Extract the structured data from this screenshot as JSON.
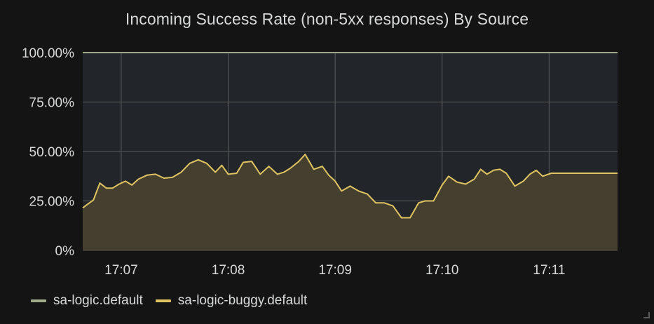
{
  "panel": {
    "title": "Incoming Success Rate (non-5xx responses) By Source"
  },
  "colors": {
    "background": "#141414",
    "plot_background": "#22262a",
    "grid": "#5a5c5c",
    "series_default": "#9faa88",
    "series_buggy": "#e0c461",
    "buggy_fill": "#443f2e"
  },
  "chart_data": {
    "type": "area",
    "title": "Incoming Success Rate (non-5xx responses) By Source",
    "xlabel": "",
    "ylabel": "",
    "y_ticks": [
      "0%",
      "25.00%",
      "50.00%",
      "75.00%",
      "100.00%"
    ],
    "y_tick_values": [
      0,
      25,
      50,
      75,
      100
    ],
    "ylim": [
      0,
      100
    ],
    "x_ticks": [
      "17:07",
      "17:08",
      "17:09",
      "17:10",
      "17:11"
    ],
    "x_tick_minutes": [
      7,
      8,
      9,
      10,
      11
    ],
    "xlim_minutes": [
      6.64,
      11.64
    ],
    "grid": true,
    "legend_placement": "bottom-left",
    "series": [
      {
        "name": "sa-logic.default",
        "color": "#9faa88",
        "x": [
          6.64,
          11.64
        ],
        "values": [
          100.0,
          100.0
        ]
      },
      {
        "name": "sa-logic-buggy.default",
        "color": "#e0c461",
        "x": [
          6.64,
          6.74,
          6.8,
          6.86,
          6.92,
          6.98,
          7.04,
          7.1,
          7.16,
          7.24,
          7.32,
          7.4,
          7.48,
          7.56,
          7.64,
          7.72,
          7.8,
          7.88,
          7.94,
          8.0,
          8.08,
          8.14,
          8.22,
          8.3,
          8.38,
          8.46,
          8.52,
          8.58,
          8.66,
          8.72,
          8.8,
          8.88,
          8.94,
          9.0,
          9.06,
          9.14,
          9.22,
          9.3,
          9.38,
          9.46,
          9.54,
          9.62,
          9.7,
          9.78,
          9.84,
          9.92,
          10.0,
          10.06,
          10.14,
          10.22,
          10.3,
          10.36,
          10.42,
          10.48,
          10.54,
          10.6,
          10.68,
          10.76,
          10.82,
          10.88,
          10.94,
          11.02,
          11.08,
          11.14,
          11.22,
          11.3,
          11.36,
          11.44,
          11.5,
          11.56,
          11.64
        ],
        "values": [
          21.5,
          25.5,
          34.0,
          31.5,
          31.5,
          33.5,
          35.0,
          33.0,
          36.0,
          38.0,
          38.5,
          36.5,
          37.0,
          39.5,
          44.0,
          45.8,
          44.0,
          39.5,
          43.0,
          38.5,
          39.0,
          44.5,
          45.0,
          38.5,
          42.5,
          38.5,
          39.5,
          41.5,
          45.0,
          48.5,
          41.0,
          42.5,
          38.0,
          35.0,
          30.0,
          32.5,
          30.0,
          28.5,
          24.0,
          24.0,
          22.5,
          16.5,
          16.5,
          24.0,
          25.0,
          25.0,
          33.0,
          37.5,
          34.5,
          33.5,
          36.0,
          41.0,
          38.5,
          40.5,
          41.0,
          39.0,
          32.5,
          35.0,
          38.5,
          40.5,
          37.5,
          39.0,
          39.0,
          39.0,
          39.0,
          39.0,
          39.0,
          39.0,
          39.0,
          39.0,
          39.0
        ]
      }
    ]
  }
}
